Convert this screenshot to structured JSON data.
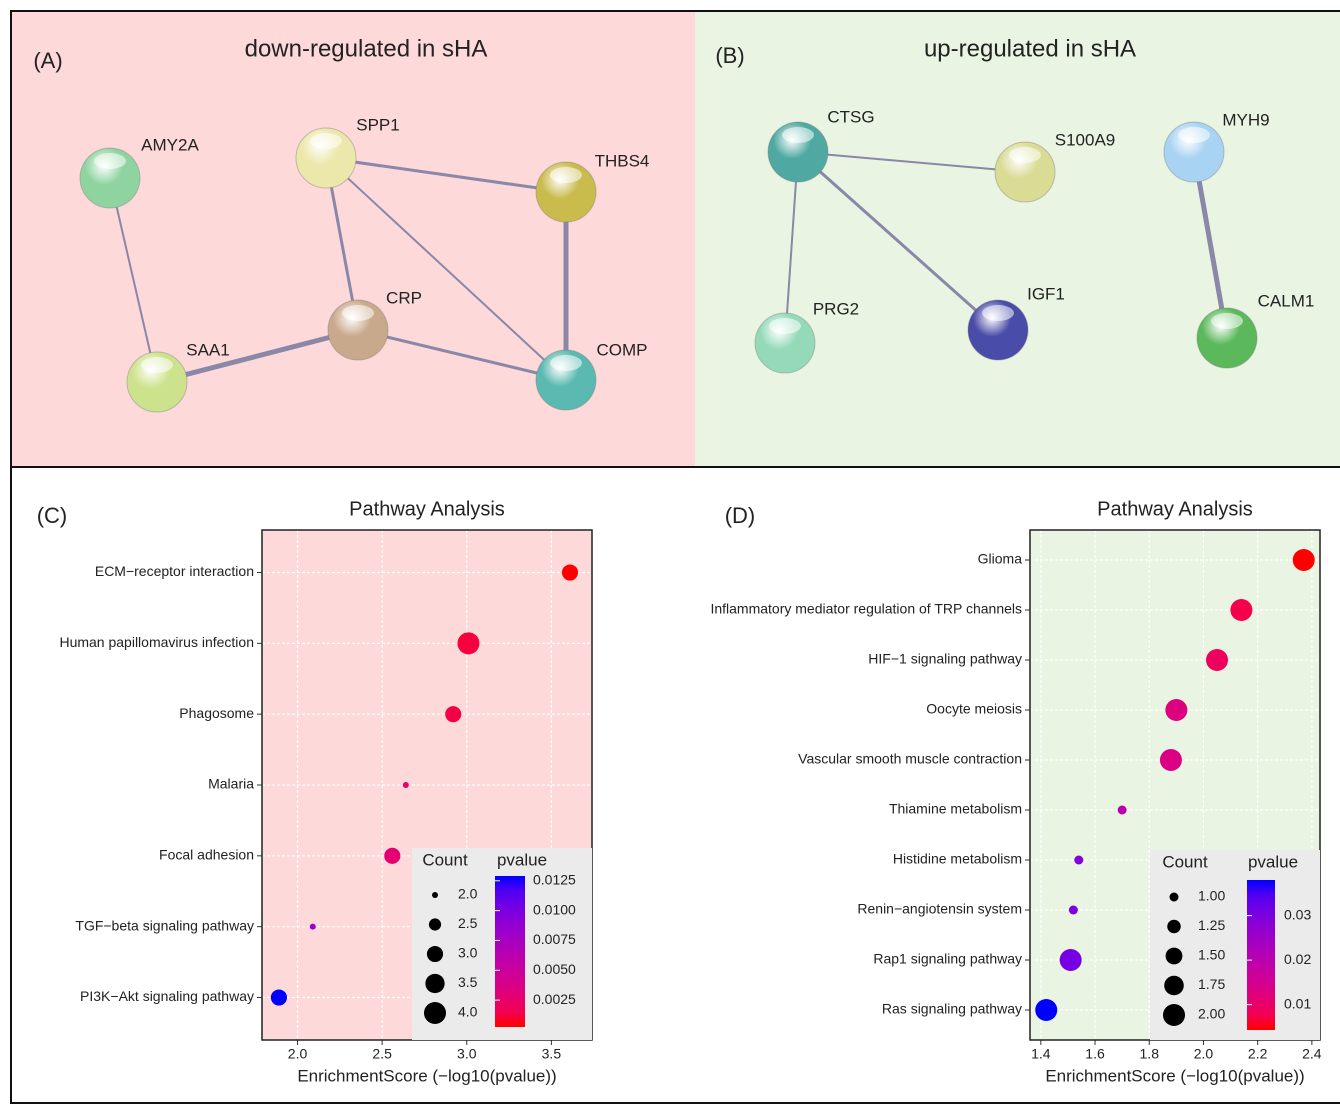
{
  "networks": [
    {
      "label": "(A)",
      "title": "down-regulated in sHA",
      "nodes": [
        {
          "name": "AMY2A",
          "color": "#8fd4a0"
        },
        {
          "name": "SPP1",
          "color": "#ece7aa"
        },
        {
          "name": "THBS4",
          "color": "#c9bb4c"
        },
        {
          "name": "CRP",
          "color": "#c9a98c"
        },
        {
          "name": "SAA1",
          "color": "#cde28c"
        },
        {
          "name": "COMP",
          "color": "#5ab9b0"
        }
      ]
    },
    {
      "label": "(B)",
      "title": "up-regulated in sHA",
      "nodes": [
        {
          "name": "CTSG",
          "color": "#4fa9a2"
        },
        {
          "name": "S100A9",
          "color": "#dadb94"
        },
        {
          "name": "MYH9",
          "color": "#a9d3f2"
        },
        {
          "name": "PRG2",
          "color": "#94dab9"
        },
        {
          "name": "IGF1",
          "color": "#4a4ca9"
        },
        {
          "name": "CALM1",
          "color": "#5bb95b"
        }
      ]
    }
  ],
  "chart_data": [
    {
      "type": "bubble",
      "panel_label": "(C)",
      "title": "Pathway Analysis",
      "xlabel": "EnrichmentScore (−log10(pvalue))",
      "categories": [
        "ECM−receptor interaction",
        "Human papillomavirus infection",
        "Phagosome",
        "Malaria",
        "Focal adhesion",
        "TGF−beta signaling pathway",
        "PI3K−Akt signaling pathway"
      ],
      "values": [
        3.61,
        3.01,
        2.92,
        2.64,
        2.56,
        2.09,
        1.89
      ],
      "counts": [
        3,
        4,
        3,
        2,
        3,
        2,
        3
      ],
      "pvalues": [
        0.00025,
        0.00098,
        0.0012,
        0.0023,
        0.0028,
        0.0081,
        0.0129
      ],
      "xlim": [
        1.79,
        3.74
      ],
      "xticks": [
        {
          "value": 2,
          "label": "2.0"
        },
        2.5,
        {
          "value": 3,
          "label": "3.0"
        },
        3.5
      ],
      "size_legend_title": "Count",
      "sizelim": [
        2,
        4
      ],
      "size_ticks": [
        {
          "value": 2,
          "label": "2.0"
        },
        2.5,
        {
          "value": 3,
          "label": "3.0"
        },
        3.5,
        {
          "value": 4,
          "label": "4.0"
        }
      ],
      "color_legend_title": "pvalue",
      "colorlim": [
        0.00025,
        0.0129
      ],
      "color_ticks": [
        {
          "value": 0.0125,
          "label": "0.0125"
        },
        {
          "value": 0.01,
          "label": "0.0100"
        },
        {
          "value": 0.0075,
          "label": "0.0075"
        },
        {
          "value": 0.005,
          "label": "0.0050"
        },
        {
          "value": 0.0025,
          "label": "0.0025"
        }
      ],
      "color_low": "#ff0000",
      "color_high": "#0000ff",
      "background": "#fdd9d9",
      "grid": true
    },
    {
      "type": "bubble",
      "panel_label": "(D)",
      "title": "Pathway Analysis",
      "xlabel": "EnrichmentScore (−log10(pvalue))",
      "categories": [
        "Glioma",
        "Inflammatory mediator regulation of TRP channels",
        "HIF−1 signaling pathway",
        "Oocyte meiosis",
        "Vascular smooth muscle contraction",
        "Thiamine metabolism",
        "Histidine metabolism",
        "Renin−angiotensin system",
        "Rap1 signaling pathway",
        "Ras signaling pathway"
      ],
      "values": [
        2.37,
        2.14,
        2.05,
        1.9,
        1.88,
        1.7,
        1.54,
        1.52,
        1.51,
        1.42
      ],
      "counts": [
        2,
        2,
        2,
        2,
        2,
        1,
        1,
        1,
        2,
        2
      ],
      "pvalues": [
        0.0043,
        0.0072,
        0.0089,
        0.0126,
        0.0132,
        0.02,
        0.029,
        0.03,
        0.031,
        0.038
      ],
      "xlim": [
        1.36,
        2.43
      ],
      "xticks": [
        1.4,
        1.6,
        1.8,
        {
          "value": 2,
          "label": "2.0"
        },
        2.2,
        2.4
      ],
      "size_legend_title": "Count",
      "sizelim": [
        1,
        2
      ],
      "size_ticks": [
        {
          "value": 1,
          "label": "1.00"
        },
        {
          "value": 1.25,
          "label": "1.25"
        },
        {
          "value": 1.5,
          "label": "1.50"
        },
        {
          "value": 1.75,
          "label": "1.75"
        },
        {
          "value": 2,
          "label": "2.00"
        }
      ],
      "color_legend_title": "pvalue",
      "colorlim": [
        0.0043,
        0.038
      ],
      "color_ticks": [
        0.03,
        0.02,
        0.01
      ],
      "color_low": "#ff0000",
      "color_high": "#0000ff",
      "background": "#eaf4e2",
      "grid": true
    }
  ]
}
